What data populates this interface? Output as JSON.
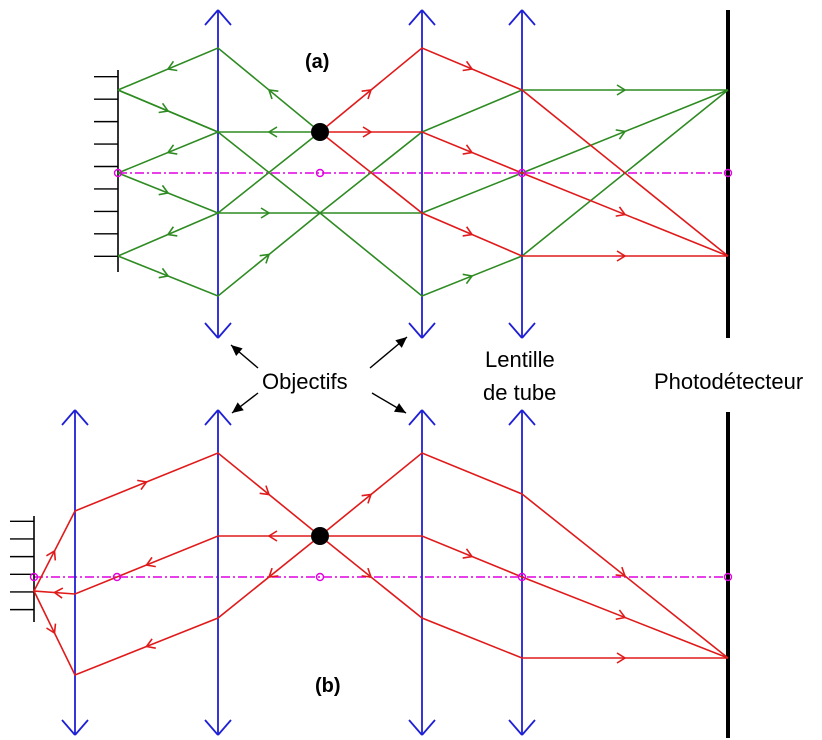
{
  "labels": {
    "panel_a": "(a)",
    "panel_b": "(b)",
    "objectifs": "Objectifs",
    "tube_lens_line1": "Lentille",
    "tube_lens_line2": "de tube",
    "detector": "Photodétecteur"
  },
  "colors": {
    "lens": "#1f1fd6",
    "green_ray": "#2e8b22",
    "red_ray": "#e01a1a",
    "axis": "#e000e0",
    "black": "#000000"
  },
  "icons": {
    "lens": "biconvex-lens-arrow",
    "mirror": "hatched-mirror",
    "point_source": "filled-dot"
  }
}
